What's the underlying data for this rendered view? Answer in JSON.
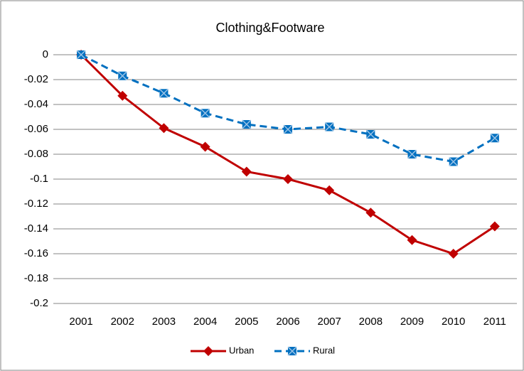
{
  "chart_data": {
    "type": "line",
    "title": "Clothing&Footware",
    "categories": [
      "2001",
      "2002",
      "2003",
      "2004",
      "2005",
      "2006",
      "2007",
      "2008",
      "2009",
      "2010",
      "2011"
    ],
    "series": [
      {
        "name": "Urban",
        "color": "#c00000",
        "values": [
          0,
          -0.033,
          -0.059,
          -0.074,
          -0.094,
          -0.1,
          -0.109,
          -0.127,
          -0.149,
          -0.16,
          -0.138
        ]
      },
      {
        "name": "Rural",
        "color": "#0070c0",
        "values": [
          0,
          -0.017,
          -0.031,
          -0.047,
          -0.056,
          -0.06,
          -0.058,
          -0.064,
          -0.08,
          -0.086,
          -0.067
        ]
      }
    ],
    "ylim": [
      -0.2,
      0
    ],
    "yticks": [
      0,
      -0.02,
      -0.04,
      -0.06,
      -0.08,
      -0.1,
      -0.12,
      -0.14,
      -0.16,
      -0.18,
      -0.2
    ],
    "grid": true,
    "legend": "bottom"
  }
}
